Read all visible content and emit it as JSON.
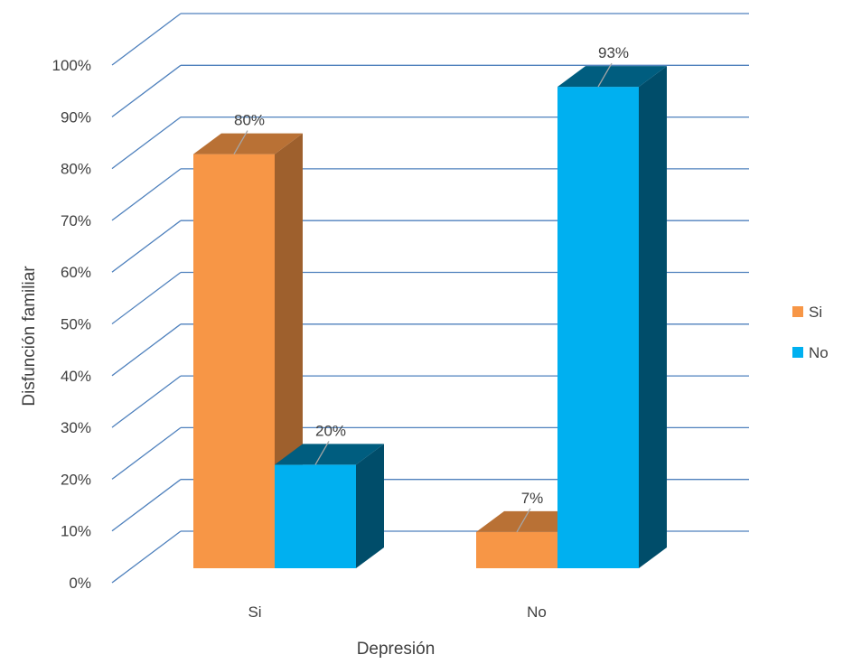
{
  "chart_data": {
    "type": "bar",
    "title": "",
    "xlabel": "Depresión",
    "ylabel": "Disfunción familiar",
    "categories": [
      "Si",
      "No"
    ],
    "series": [
      {
        "name": "Si",
        "values": [
          80,
          7
        ],
        "labels": [
          "80%",
          "7%"
        ],
        "color": "#F79646"
      },
      {
        "name": "No",
        "values": [
          20,
          93
        ],
        "labels": [
          "20%",
          "93%"
        ],
        "color": "#00B0F0"
      }
    ],
    "ylim": [
      0,
      100
    ],
    "yticks": [
      "0%",
      "10%",
      "20%",
      "30%",
      "40%",
      "50%",
      "60%",
      "70%",
      "80%",
      "90%",
      "100%"
    ],
    "grid": true,
    "legend_position": "right",
    "style": "3d-clustered-column"
  }
}
